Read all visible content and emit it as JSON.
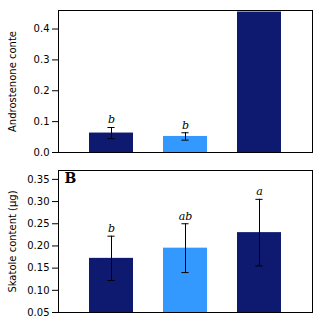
{
  "chart_data": [
    {
      "type": "bar",
      "ylabel": "Androstenone conte",
      "categories": [
        null,
        null,
        null
      ],
      "values": [
        0.063,
        0.052,
        0.455
      ],
      "errors": [
        0.018,
        0.012,
        0.0
      ],
      "annotations": [
        "b",
        "b",
        null
      ],
      "colors": [
        "#0d1a70",
        "#3399ff",
        "#0d1a70"
      ],
      "ylim": [
        0.0,
        0.46
      ],
      "yticks": [
        {
          "value": 0.0,
          "label": "0.0"
        },
        0.1,
        0.2,
        0.3,
        0.4
      ],
      "tick_labels": "y"
    },
    {
      "type": "bar",
      "title": "B",
      "ylabel": "Skatole content (µg)",
      "categories": [
        null,
        null,
        null
      ],
      "values": [
        0.172,
        0.195,
        0.23
      ],
      "errors": [
        0.05,
        0.055,
        0.075
      ],
      "annotations": [
        "b",
        "ab",
        "a"
      ],
      "colors": [
        "#0d1a70",
        "#3399ff",
        "#0d1a70"
      ],
      "ylim": [
        0.05,
        0.37
      ],
      "yticks": [
        0.05,
        {
          "value": 0.1,
          "label": "0.10"
        },
        0.15,
        {
          "value": 0.2,
          "label": "0.20"
        },
        0.25,
        {
          "value": 0.3,
          "label": "0.30"
        },
        0.35
      ],
      "tick_labels": "y"
    }
  ]
}
